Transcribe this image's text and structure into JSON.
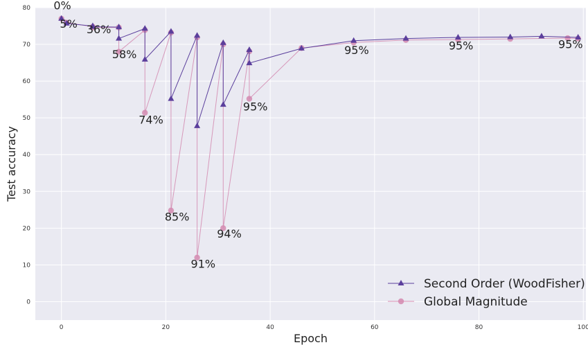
{
  "chart_data": {
    "type": "line",
    "xlabel": "Epoch",
    "ylabel": "Test accuracy",
    "xlim": [
      -5,
      100.5
    ],
    "ylim": [
      -5,
      80
    ],
    "x_ticks": [
      0,
      20,
      40,
      60,
      80,
      100
    ],
    "y_ticks": [
      0,
      10,
      20,
      30,
      40,
      50,
      60,
      70,
      80
    ],
    "grid": true,
    "legend_position": "bottom-right",
    "colors": {
      "background": "#eaeaf2",
      "grid": "#ffffff",
      "series_0": "#5b3f9c",
      "series_1": "#d489b0"
    },
    "series": [
      {
        "name": "Second Order (WoodFisher)",
        "marker": "triangle",
        "x": [
          0,
          1,
          6,
          6,
          11,
          11,
          16,
          16,
          21,
          21,
          26,
          26,
          31,
          31,
          36,
          36,
          46,
          56,
          66,
          76,
          86,
          92,
          99
        ],
        "y": [
          77.0,
          75.7,
          75.0,
          74.8,
          74.7,
          71.6,
          74.3,
          65.9,
          73.5,
          55.2,
          72.4,
          47.8,
          70.4,
          53.6,
          68.5,
          64.9,
          68.9,
          71.0,
          71.6,
          71.9,
          72.0,
          72.2,
          71.9
        ]
      },
      {
        "name": "Global Magnitude",
        "marker": "circle",
        "x": [
          0,
          1,
          6,
          6,
          11,
          11,
          16,
          16,
          21,
          21,
          26,
          26,
          31,
          31,
          36,
          36,
          46,
          56,
          66,
          76,
          86,
          97,
          99
        ],
        "y": [
          77.0,
          75.9,
          74.8,
          74.6,
          74.6,
          68.0,
          73.9,
          51.4,
          73.2,
          24.8,
          71.9,
          12.0,
          70.0,
          20.0,
          68.1,
          55.2,
          69.0,
          70.5,
          71.2,
          71.3,
          71.5,
          71.7,
          71.6
        ]
      }
    ],
    "annotations": [
      {
        "text": "0%",
        "x": -1.5,
        "y": 79.5
      },
      {
        "text": "5%",
        "x": -0.3,
        "y": 74.5
      },
      {
        "text": "36%",
        "x": 4.8,
        "y": 73.0
      },
      {
        "text": "58%",
        "x": 9.7,
        "y": 66.2
      },
      {
        "text": "74%",
        "x": 14.8,
        "y": 48.4
      },
      {
        "text": "85%",
        "x": 19.8,
        "y": 22.0
      },
      {
        "text": "91%",
        "x": 24.8,
        "y": 9.2
      },
      {
        "text": "94%",
        "x": 29.8,
        "y": 17.4
      },
      {
        "text": "95%",
        "x": 34.8,
        "y": 52.0
      },
      {
        "text": "95%",
        "x": 54.2,
        "y": 67.4
      },
      {
        "text": "95%",
        "x": 74.2,
        "y": 68.6
      },
      {
        "text": "95%",
        "x": 95.2,
        "y": 69.0
      }
    ]
  }
}
